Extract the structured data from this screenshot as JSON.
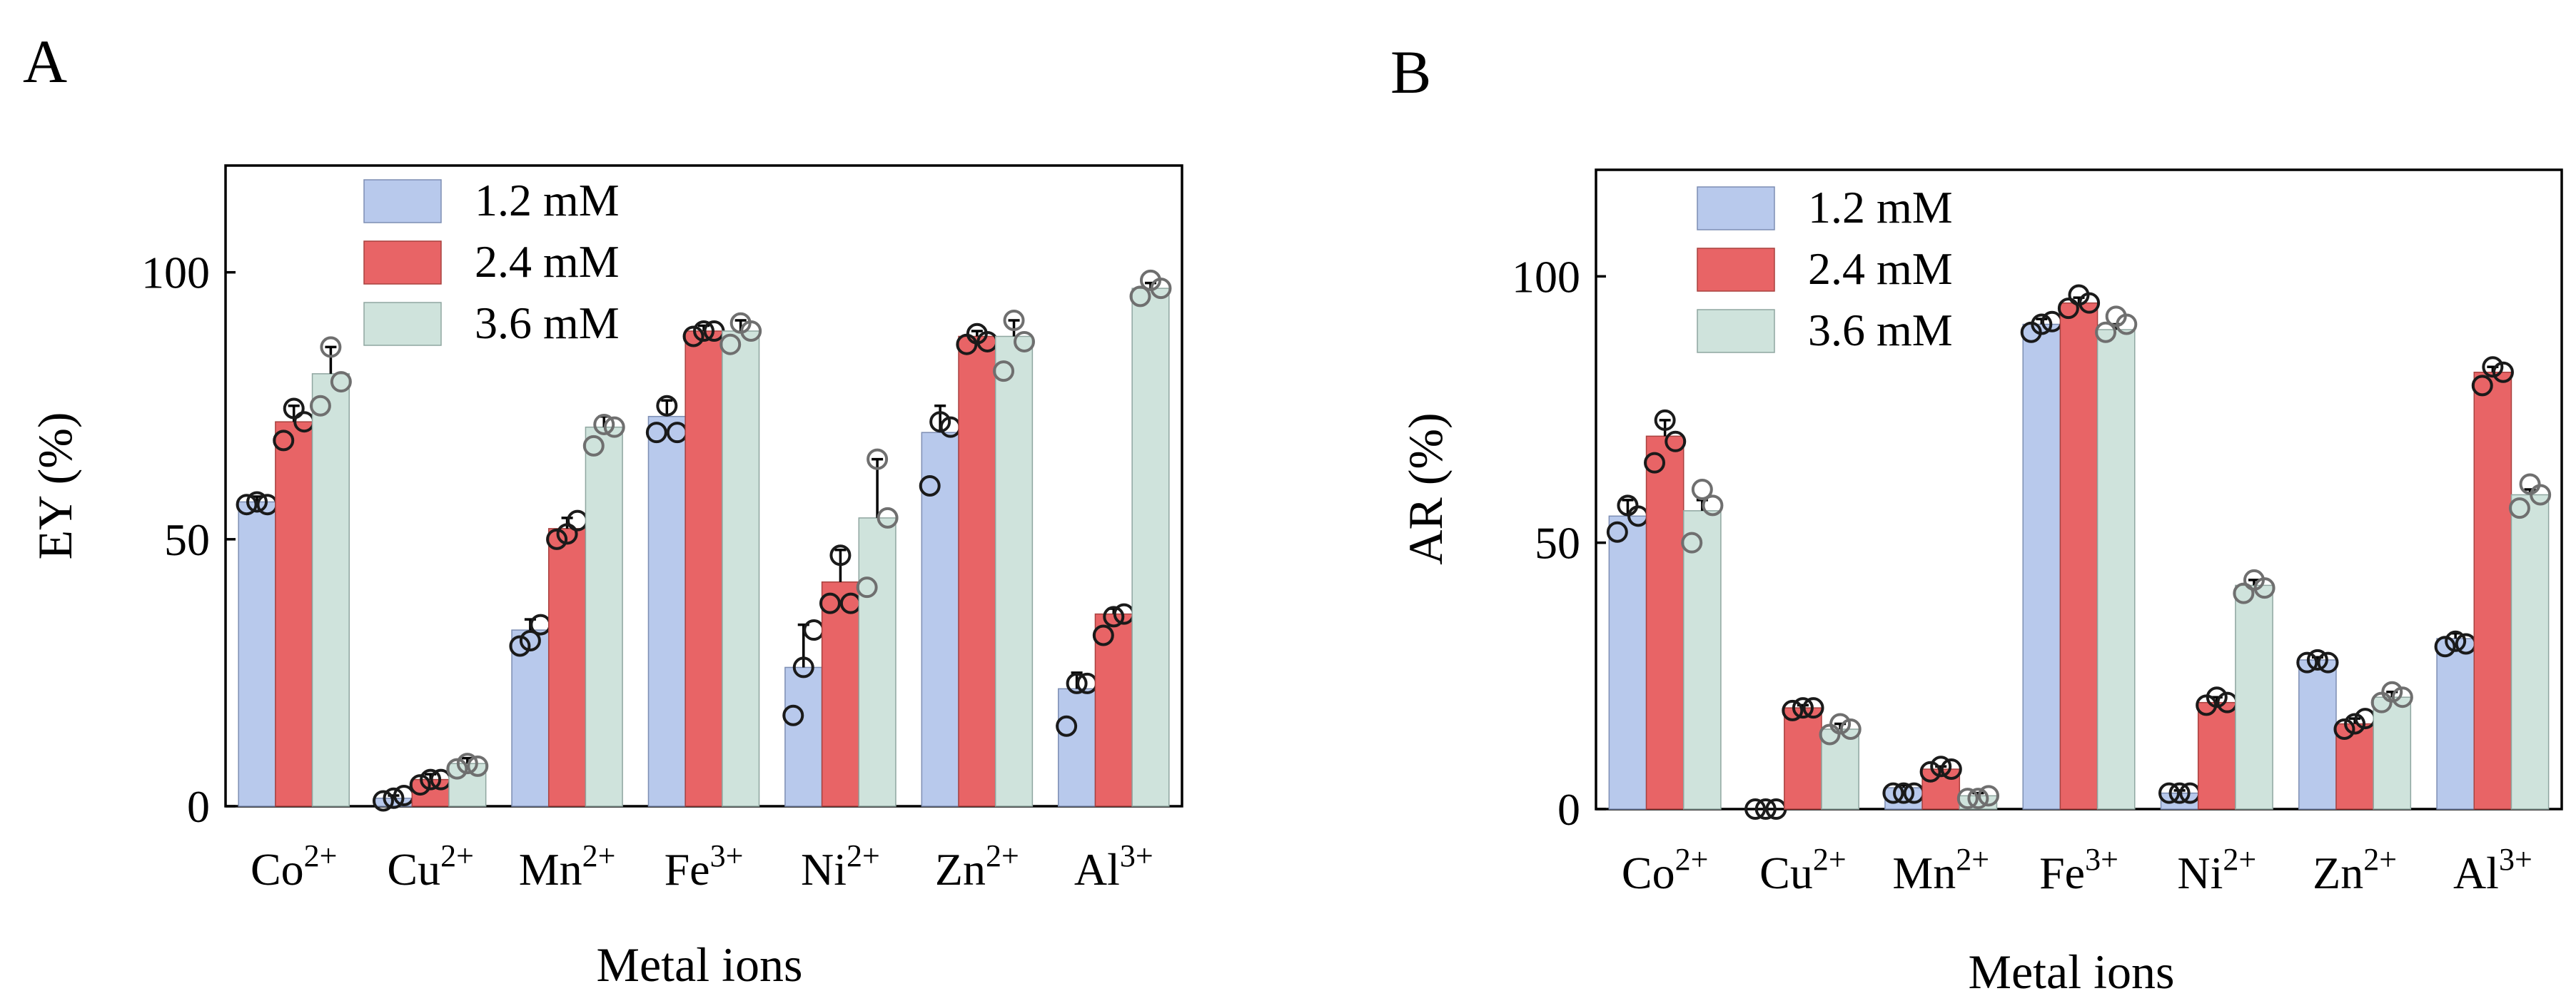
{
  "figure": {
    "panels": [
      "A",
      "B"
    ]
  },
  "colors": {
    "s1": "#b8c9ec",
    "s2": "#e86466",
    "s3": "#cfe3dc",
    "s1_edge": "#7d8eb3",
    "s2_edge": "#a8413f",
    "s3_edge": "#8fa6a0"
  },
  "chart_data": [
    {
      "panel": "A",
      "type": "bar",
      "categories": [
        {
          "base": "Co",
          "sup": "2+"
        },
        {
          "base": "Cu",
          "sup": "2+"
        },
        {
          "base": "Mn",
          "sup": "2+"
        },
        {
          "base": "Fe",
          "sup": "3+"
        },
        {
          "base": "Ni",
          "sup": "2+"
        },
        {
          "base": "Zn",
          "sup": "2+"
        },
        {
          "base": "Al",
          "sup": "3+"
        }
      ],
      "xlabel": "Metal ions",
      "ylabel": "EY (%)",
      "ylim": [
        0,
        120
      ],
      "yticks": [
        0,
        50,
        100
      ],
      "legend_position": "top-left",
      "series": [
        {
          "name": "1.2 mM",
          "values": [
            57,
            1.5,
            33,
            73,
            26,
            70,
            22
          ],
          "err": [
            1,
            0.5,
            2,
            3,
            8,
            5,
            3
          ],
          "points": [
            [
              56.5,
              57,
              56.5
            ],
            [
              1,
              1.5,
              2
            ],
            [
              30,
              31,
              34
            ],
            [
              70,
              75,
              70
            ],
            [
              17,
              26,
              33
            ],
            [
              60,
              72,
              71
            ],
            [
              15,
              23,
              23
            ]
          ]
        },
        {
          "name": "2.4 mM",
          "values": [
            72,
            5,
            52,
            89,
            42,
            88,
            36
          ],
          "err": [
            3,
            1,
            2,
            1,
            6,
            1,
            1
          ],
          "points": [
            [
              68.5,
              74.5,
              72
            ],
            [
              4,
              5,
              5
            ],
            [
              50,
              51,
              53.5
            ],
            [
              88,
              89,
              89
            ],
            [
              38,
              47,
              38
            ],
            [
              86.5,
              88.5,
              87
            ],
            [
              32,
              35.5,
              36
            ]
          ]
        },
        {
          "name": "3.6 mM",
          "values": [
            81,
            8,
            71,
            89,
            54,
            88,
            97
          ],
          "err": [
            5,
            1,
            2,
            2,
            11,
            3,
            1
          ],
          "points": [
            [
              75,
              86,
              79.5
            ],
            [
              7,
              8,
              7.5
            ],
            [
              67.5,
              71.5,
              71
            ],
            [
              86.5,
              90.5,
              89
            ],
            [
              41,
              65,
              54
            ],
            [
              81.5,
              91,
              87
            ],
            [
              95.5,
              98.5,
              97
            ]
          ]
        }
      ]
    },
    {
      "panel": "B",
      "type": "bar",
      "categories": [
        {
          "base": "Co",
          "sup": "2+"
        },
        {
          "base": "Cu",
          "sup": "2+"
        },
        {
          "base": "Mn",
          "sup": "2+"
        },
        {
          "base": "Fe",
          "sup": "3+"
        },
        {
          "base": "Ni",
          "sup": "2+"
        },
        {
          "base": "Zn",
          "sup": "2+"
        },
        {
          "base": "Al",
          "sup": "3+"
        }
      ],
      "xlabel": "Metal ions",
      "ylabel": "AR (%)",
      "ylim": [
        0,
        120
      ],
      "yticks": [
        0,
        50,
        100
      ],
      "legend_position": "top-left",
      "series": [
        {
          "name": "1.2 mM",
          "values": [
            55,
            0,
            4,
            91,
            3,
            28,
            32
          ],
          "err": [
            3,
            0,
            0.5,
            1,
            0.5,
            0.5,
            1
          ],
          "points": [
            [
              52,
              57,
              55
            ],
            [
              0,
              0,
              0
            ],
            [
              3,
              3,
              3
            ],
            [
              89.5,
              91,
              91.5
            ],
            [
              3,
              3,
              3
            ],
            [
              27.5,
              28,
              27.5
            ],
            [
              30.5,
              31.5,
              31
            ]
          ]
        },
        {
          "name": "2.4 mM",
          "values": [
            70,
            19,
            7.5,
            95,
            20,
            16,
            82
          ],
          "err": [
            3,
            0.5,
            0.5,
            1,
            1,
            1,
            1
          ],
          "points": [
            [
              65,
              73,
              69
            ],
            [
              18.5,
              19,
              19
            ],
            [
              7,
              8,
              7.5
            ],
            [
              94,
              96.5,
              95
            ],
            [
              19.5,
              21,
              20
            ],
            [
              15,
              16,
              17
            ],
            [
              79.5,
              83,
              82
            ]
          ]
        },
        {
          "name": "3.6 mM",
          "values": [
            56,
            15,
            2.5,
            90,
            42,
            21,
            59
          ],
          "err": [
            2,
            1,
            0.5,
            1,
            1,
            1,
            1
          ],
          "points": [
            [
              50,
              60,
              57
            ],
            [
              14,
              16,
              15
            ],
            [
              2,
              2,
              2.5
            ],
            [
              89.5,
              92.5,
              91
            ],
            [
              40.5,
              43,
              41.5
            ],
            [
              20,
              22,
              21
            ],
            [
              56.5,
              61,
              59
            ]
          ]
        }
      ]
    }
  ]
}
